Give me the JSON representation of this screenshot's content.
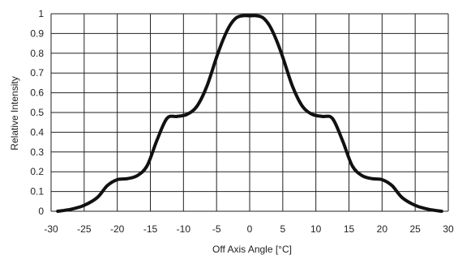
{
  "chart_data": {
    "type": "line",
    "title": "",
    "xlabel": "Off Axis Angle [°C]",
    "ylabel": "Relative Intensity",
    "xlim": [
      -30,
      30
    ],
    "ylim": [
      0,
      1
    ],
    "x_ticks": [
      -30,
      -25,
      -20,
      -15,
      -10,
      -5,
      0,
      5,
      10,
      15,
      20,
      25,
      30
    ],
    "y_ticks": [
      0,
      0.1,
      0.2,
      0.3,
      0.4,
      0.5,
      0.6,
      0.7,
      0.8,
      0.9,
      1
    ],
    "x_tick_labels": [
      "-30",
      "-25",
      "-20",
      "-15",
      "-10",
      "-5",
      "0",
      "5",
      "10",
      "15",
      "20",
      "25",
      "30"
    ],
    "y_tick_labels": [
      "0",
      "0.1",
      "0.2",
      "0.3",
      "0.4",
      "0.5",
      "0.6",
      "0.7",
      "0.8",
      "0.9",
      "1"
    ],
    "grid": true,
    "series": [
      {
        "color": "#111111",
        "x": [
          -29,
          -27,
          -25,
          -23,
          -21.5,
          -20,
          -18.5,
          -17,
          -15.5,
          -14,
          -12.5,
          -11,
          -9.5,
          -8,
          -6.5,
          -5,
          -4,
          -3,
          -2,
          -1,
          0,
          1,
          2,
          3,
          4,
          5,
          6.5,
          8,
          9.5,
          11,
          12.5,
          14,
          15.5,
          17,
          18.5,
          20,
          21.5,
          23,
          25,
          27,
          29
        ],
        "y": [
          0,
          0.01,
          0.03,
          0.07,
          0.13,
          0.16,
          0.165,
          0.18,
          0.23,
          0.36,
          0.47,
          0.48,
          0.49,
          0.53,
          0.63,
          0.78,
          0.87,
          0.94,
          0.98,
          0.99,
          0.99,
          0.99,
          0.98,
          0.94,
          0.87,
          0.78,
          0.63,
          0.53,
          0.49,
          0.48,
          0.47,
          0.36,
          0.23,
          0.18,
          0.165,
          0.16,
          0.13,
          0.07,
          0.03,
          0.01,
          0
        ]
      }
    ]
  }
}
